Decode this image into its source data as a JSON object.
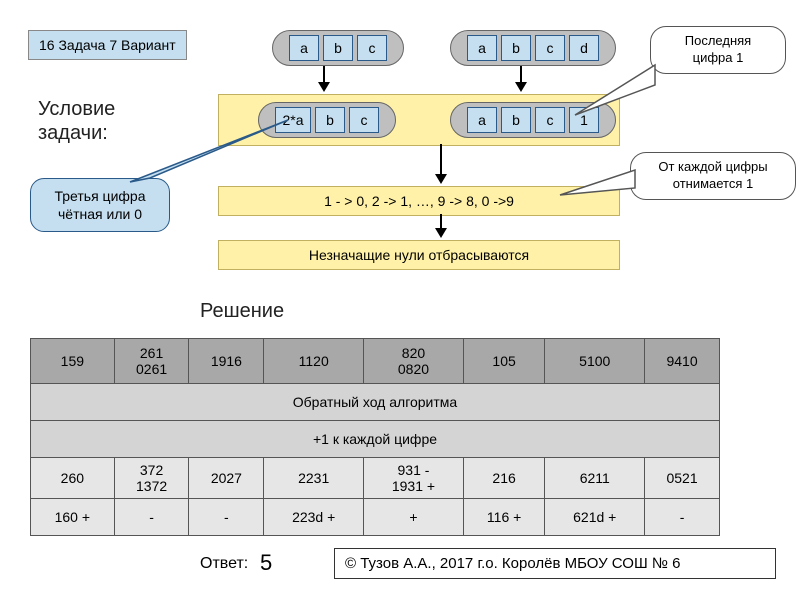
{
  "badge": "16 Задача 7 Вариант",
  "headings": {
    "condition": "Условие",
    "task": "задачи:",
    "solution": "Решение",
    "answer_label": "Ответ:",
    "answer_value": "5"
  },
  "pills": {
    "top_left": [
      "a",
      "b",
      "c"
    ],
    "top_right": [
      "a",
      "b",
      "c",
      "d"
    ],
    "mid_left": [
      "2*a",
      "b",
      "c"
    ],
    "mid_right": [
      "a",
      "b",
      "c",
      "1"
    ]
  },
  "callouts": {
    "last_digit": "Последняя\nцифра 1",
    "subtract_one": "От каждой цифры\nотнимается 1",
    "third_digit": "Третья цифра\nчётная или 0"
  },
  "bars": {
    "transform": "1 - > 0,  2 -> 1, …,  9 -> 8, 0 ->9",
    "drop_zeros": "Незначащие нули отбрасываются"
  },
  "table": {
    "header": [
      "159",
      "261\n0261",
      "1916",
      "1120",
      "820\n0820",
      "105",
      "5100",
      "9410"
    ],
    "mid1": "Обратный ход алгоритма",
    "mid2": "+1 к каждой цифре",
    "row2": [
      "260",
      "372\n1372",
      "2027",
      "2231",
      "931 -\n1931 +",
      "216",
      "6211",
      "0521"
    ],
    "row3": [
      "160 +",
      "-",
      "-",
      "223d +",
      "+",
      "116 +",
      "621d +",
      "-"
    ]
  },
  "footer": "©  Тузов А.А., 2017 г.о. Королёв  МБОУ СОШ № 6",
  "colors": {
    "blue_fill": "#c5dff0",
    "yellow_fill": "#fff2a8",
    "grey_pill": "#bfbfbf",
    "table_hdr": "#a8a8a8",
    "table_mid": "#d4d4d4",
    "table_data": "#e6e6e6"
  }
}
